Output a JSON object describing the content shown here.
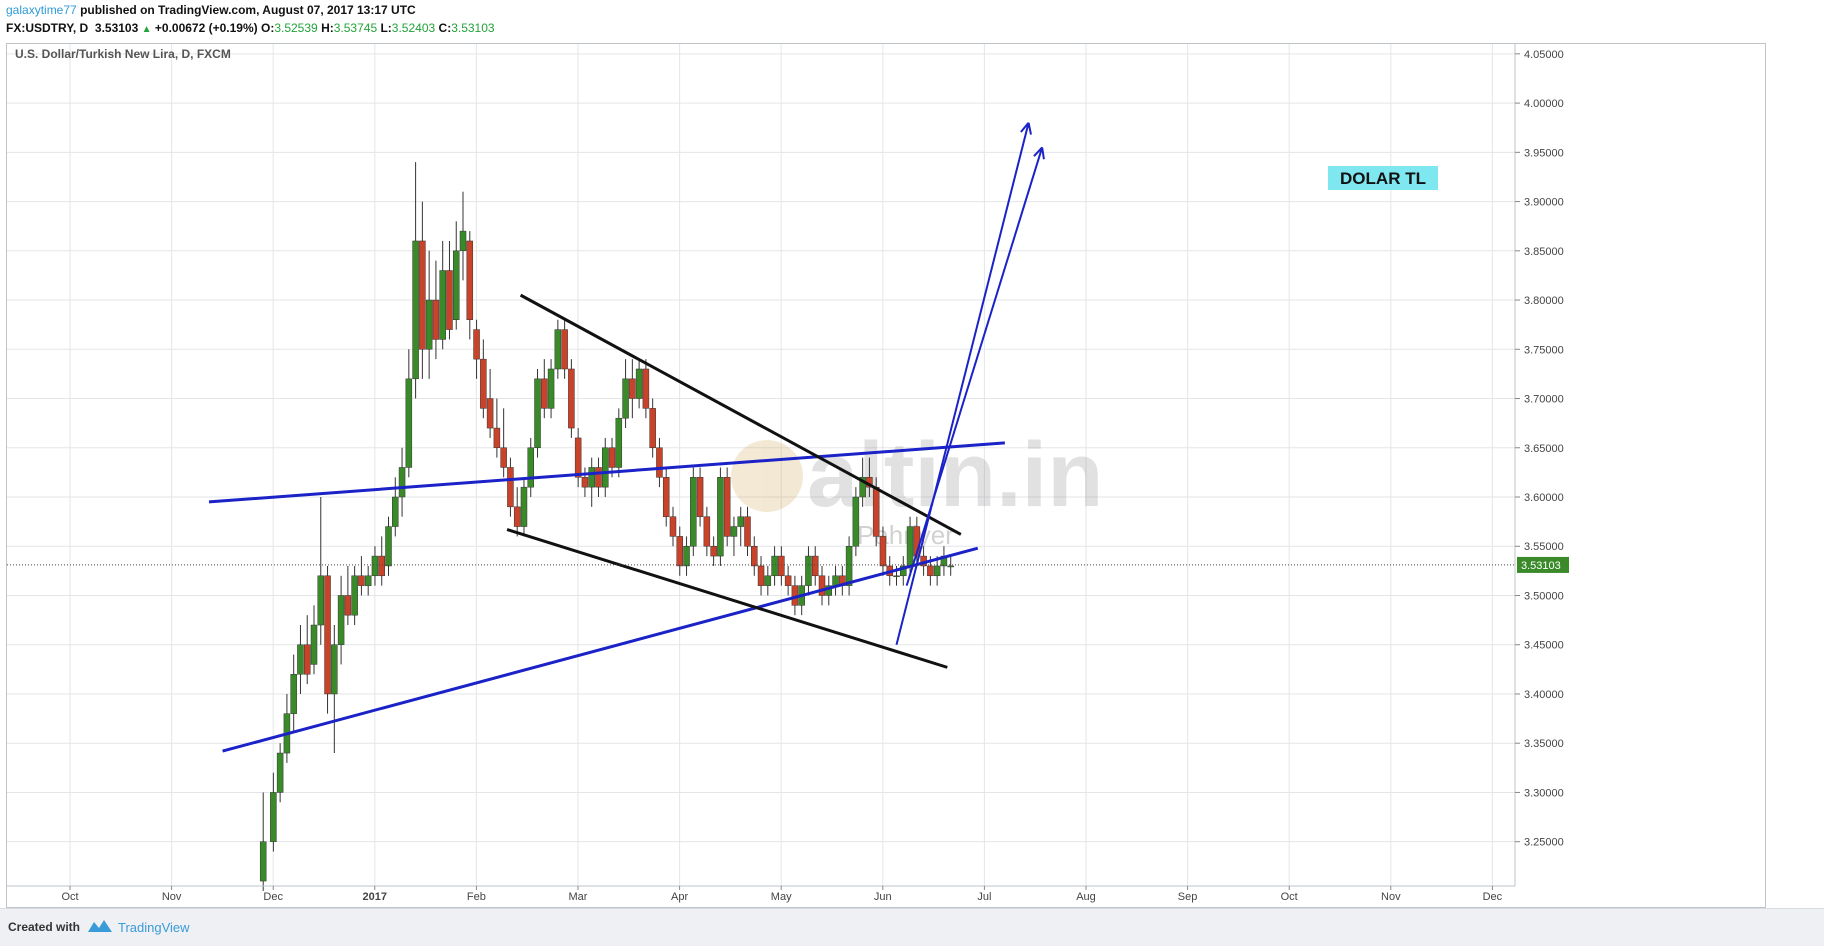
{
  "header": {
    "author": "galaxytime77",
    "published": "published on TradingView.com, August 07, 2017 13:17 UTC",
    "symbol": "FX:USDTRY, D",
    "last": "3.53103",
    "change": "+0.00672 (+0.19%)",
    "open_label": "O:",
    "open": "3.52539",
    "high_label": "H:",
    "high": "3.53745",
    "low_label": "L:",
    "low": "3.52403",
    "close_label": "C:",
    "close": "3.53103"
  },
  "footer": {
    "created_with": "Created with",
    "brand": "TradingView"
  },
  "colors": {
    "up": "#3a8a2a",
    "down": "#c9422a",
    "trend_blue": "#1a22c8",
    "trend_black": "#111111",
    "label_bg": "#7fe7f0"
  },
  "chart_data": {
    "type": "candlestick",
    "title": "U.S. Dollar/Turkish New Lira, D, FXCM",
    "watermark": "altin.in",
    "watermark_sub": "Pahriyer",
    "annotation": "DOLAR TL",
    "last_price_label": "3.53103",
    "x_ticks": [
      "Oct",
      "Nov",
      "Dec",
      "2017",
      "Feb",
      "Mar",
      "Apr",
      "May",
      "Jun",
      "Jul",
      "Aug",
      "Sep",
      "Oct",
      "Nov",
      "Dec"
    ],
    "y_ticks": [
      "3.25000",
      "3.30000",
      "3.35000",
      "3.40000",
      "3.45000",
      "3.50000",
      "3.55000",
      "3.60000",
      "3.65000",
      "3.70000",
      "3.75000",
      "3.80000",
      "3.85000",
      "3.90000",
      "3.95000",
      "4.00000",
      "4.05000"
    ],
    "ylim": [
      3.205,
      4.06
    ],
    "grid": true,
    "candles": [
      [
        0,
        3.21,
        3.3,
        3.2,
        3.25
      ],
      [
        3,
        3.25,
        3.32,
        3.24,
        3.3
      ],
      [
        5,
        3.3,
        3.35,
        3.29,
        3.34
      ],
      [
        7,
        3.34,
        3.4,
        3.33,
        3.38
      ],
      [
        9,
        3.38,
        3.44,
        3.36,
        3.42
      ],
      [
        11,
        3.42,
        3.47,
        3.4,
        3.45
      ],
      [
        13,
        3.45,
        3.48,
        3.41,
        3.42
      ],
      [
        15,
        3.43,
        3.49,
        3.42,
        3.47
      ],
      [
        17,
        3.47,
        3.6,
        3.45,
        3.52
      ],
      [
        19,
        3.52,
        3.53,
        3.38,
        3.4
      ],
      [
        21,
        3.4,
        3.47,
        3.34,
        3.45
      ],
      [
        23,
        3.45,
        3.52,
        3.43,
        3.5
      ],
      [
        25,
        3.5,
        3.53,
        3.47,
        3.48
      ],
      [
        27,
        3.48,
        3.53,
        3.47,
        3.52
      ],
      [
        29,
        3.52,
        3.54,
        3.5,
        3.51
      ],
      [
        31,
        3.51,
        3.53,
        3.5,
        3.52
      ],
      [
        33,
        3.52,
        3.55,
        3.51,
        3.54
      ],
      [
        35,
        3.54,
        3.56,
        3.51,
        3.52
      ],
      [
        37,
        3.53,
        3.58,
        3.52,
        3.57
      ],
      [
        39,
        3.57,
        3.62,
        3.56,
        3.6
      ],
      [
        41,
        3.6,
        3.65,
        3.58,
        3.63
      ],
      [
        43,
        3.63,
        3.75,
        3.62,
        3.72
      ],
      [
        45,
        3.72,
        3.94,
        3.7,
        3.86
      ],
      [
        47,
        3.86,
        3.9,
        3.72,
        3.75
      ],
      [
        49,
        3.75,
        3.85,
        3.72,
        3.8
      ],
      [
        51,
        3.8,
        3.84,
        3.74,
        3.76
      ],
      [
        53,
        3.76,
        3.86,
        3.75,
        3.83
      ],
      [
        55,
        3.83,
        3.86,
        3.76,
        3.77
      ],
      [
        57,
        3.78,
        3.88,
        3.77,
        3.85
      ],
      [
        59,
        3.85,
        3.91,
        3.82,
        3.87
      ],
      [
        61,
        3.86,
        3.87,
        3.76,
        3.78
      ],
      [
        63,
        3.77,
        3.78,
        3.72,
        3.74
      ],
      [
        65,
        3.74,
        3.76,
        3.68,
        3.69
      ],
      [
        67,
        3.7,
        3.73,
        3.66,
        3.67
      ],
      [
        69,
        3.67,
        3.7,
        3.64,
        3.65
      ],
      [
        71,
        3.65,
        3.69,
        3.62,
        3.63
      ],
      [
        73,
        3.63,
        3.64,
        3.58,
        3.59
      ],
      [
        75,
        3.59,
        3.61,
        3.56,
        3.57
      ],
      [
        77,
        3.57,
        3.62,
        3.56,
        3.61
      ],
      [
        79,
        3.61,
        3.66,
        3.6,
        3.65
      ],
      [
        81,
        3.65,
        3.73,
        3.64,
        3.72
      ],
      [
        83,
        3.72,
        3.74,
        3.68,
        3.69
      ],
      [
        85,
        3.69,
        3.74,
        3.68,
        3.73
      ],
      [
        87,
        3.73,
        3.78,
        3.72,
        3.77
      ],
      [
        89,
        3.77,
        3.78,
        3.72,
        3.73
      ],
      [
        91,
        3.73,
        3.74,
        3.66,
        3.67
      ],
      [
        93,
        3.66,
        3.67,
        3.61,
        3.62
      ],
      [
        95,
        3.62,
        3.63,
        3.6,
        3.61
      ],
      [
        97,
        3.61,
        3.64,
        3.59,
        3.63
      ],
      [
        99,
        3.63,
        3.64,
        3.6,
        3.61
      ],
      [
        101,
        3.61,
        3.66,
        3.6,
        3.65
      ],
      [
        103,
        3.65,
        3.66,
        3.62,
        3.63
      ],
      [
        105,
        3.63,
        3.69,
        3.62,
        3.68
      ],
      [
        107,
        3.68,
        3.74,
        3.67,
        3.72
      ],
      [
        109,
        3.72,
        3.74,
        3.68,
        3.7
      ],
      [
        111,
        3.7,
        3.74,
        3.69,
        3.73
      ],
      [
        113,
        3.73,
        3.74,
        3.68,
        3.69
      ],
      [
        115,
        3.69,
        3.7,
        3.64,
        3.65
      ],
      [
        117,
        3.65,
        3.66,
        3.61,
        3.62
      ],
      [
        119,
        3.62,
        3.63,
        3.57,
        3.58
      ],
      [
        121,
        3.58,
        3.59,
        3.55,
        3.56
      ],
      [
        123,
        3.56,
        3.57,
        3.52,
        3.53
      ],
      [
        125,
        3.53,
        3.56,
        3.52,
        3.55
      ],
      [
        127,
        3.55,
        3.63,
        3.54,
        3.62
      ],
      [
        129,
        3.62,
        3.63,
        3.57,
        3.58
      ],
      [
        131,
        3.58,
        3.59,
        3.54,
        3.55
      ],
      [
        133,
        3.55,
        3.56,
        3.53,
        3.54
      ],
      [
        135,
        3.54,
        3.63,
        3.53,
        3.62
      ],
      [
        137,
        3.62,
        3.63,
        3.55,
        3.56
      ],
      [
        139,
        3.56,
        3.58,
        3.54,
        3.57
      ],
      [
        141,
        3.57,
        3.59,
        3.55,
        3.58
      ],
      [
        143,
        3.58,
        3.59,
        3.54,
        3.55
      ],
      [
        145,
        3.55,
        3.56,
        3.52,
        3.53
      ],
      [
        147,
        3.53,
        3.54,
        3.5,
        3.51
      ],
      [
        149,
        3.51,
        3.53,
        3.5,
        3.52
      ],
      [
        151,
        3.52,
        3.55,
        3.51,
        3.54
      ],
      [
        153,
        3.54,
        3.55,
        3.51,
        3.52
      ],
      [
        155,
        3.52,
        3.53,
        3.5,
        3.51
      ],
      [
        157,
        3.51,
        3.52,
        3.48,
        3.49
      ],
      [
        159,
        3.49,
        3.52,
        3.48,
        3.51
      ],
      [
        161,
        3.51,
        3.55,
        3.5,
        3.54
      ],
      [
        163,
        3.54,
        3.55,
        3.51,
        3.52
      ],
      [
        165,
        3.52,
        3.53,
        3.49,
        3.5
      ],
      [
        167,
        3.5,
        3.52,
        3.49,
        3.51
      ],
      [
        169,
        3.51,
        3.53,
        3.5,
        3.52
      ],
      [
        171,
        3.52,
        3.53,
        3.5,
        3.51
      ],
      [
        173,
        3.51,
        3.56,
        3.5,
        3.55
      ],
      [
        175,
        3.55,
        3.61,
        3.54,
        3.6
      ],
      [
        177,
        3.6,
        3.64,
        3.59,
        3.62
      ],
      [
        179,
        3.62,
        3.64,
        3.6,
        3.61
      ],
      [
        181,
        3.61,
        3.62,
        3.55,
        3.56
      ],
      [
        183,
        3.56,
        3.57,
        3.52,
        3.53
      ],
      [
        185,
        3.53,
        3.54,
        3.51,
        3.52
      ],
      [
        187,
        3.52,
        3.53,
        3.51,
        3.52
      ],
      [
        189,
        3.52,
        3.54,
        3.51,
        3.53
      ],
      [
        191,
        3.53,
        3.58,
        3.52,
        3.57
      ],
      [
        193,
        3.57,
        3.58,
        3.53,
        3.54
      ],
      [
        195,
        3.54,
        3.55,
        3.52,
        3.53
      ],
      [
        197,
        3.53,
        3.54,
        3.51,
        3.52
      ],
      [
        199,
        3.52,
        3.54,
        3.51,
        3.53
      ],
      [
        201,
        3.53,
        3.55,
        3.52,
        3.54
      ],
      [
        203,
        3.53,
        3.54,
        3.52,
        3.53
      ]
    ],
    "candle_day_axis": {
      "day0_tick_index": 2,
      "days_per_month": 30
    },
    "trendlines": [
      {
        "color": "blue",
        "from": [
          -16,
          3.595
        ],
        "to": [
          219,
          3.655
        ]
      },
      {
        "color": "blue",
        "from": [
          -12,
          3.342
        ],
        "to": [
          211,
          3.548
        ]
      },
      {
        "color": "black",
        "from": [
          76,
          3.805
        ],
        "to": [
          206,
          3.562
        ]
      },
      {
        "color": "black",
        "from": [
          72,
          3.567
        ],
        "to": [
          202,
          3.427
        ]
      }
    ],
    "arrows": [
      {
        "from": [
          187,
          3.45
        ],
        "to": [
          226,
          3.98
        ]
      },
      {
        "from": [
          190,
          3.51
        ],
        "to": [
          230,
          3.955
        ]
      }
    ]
  }
}
